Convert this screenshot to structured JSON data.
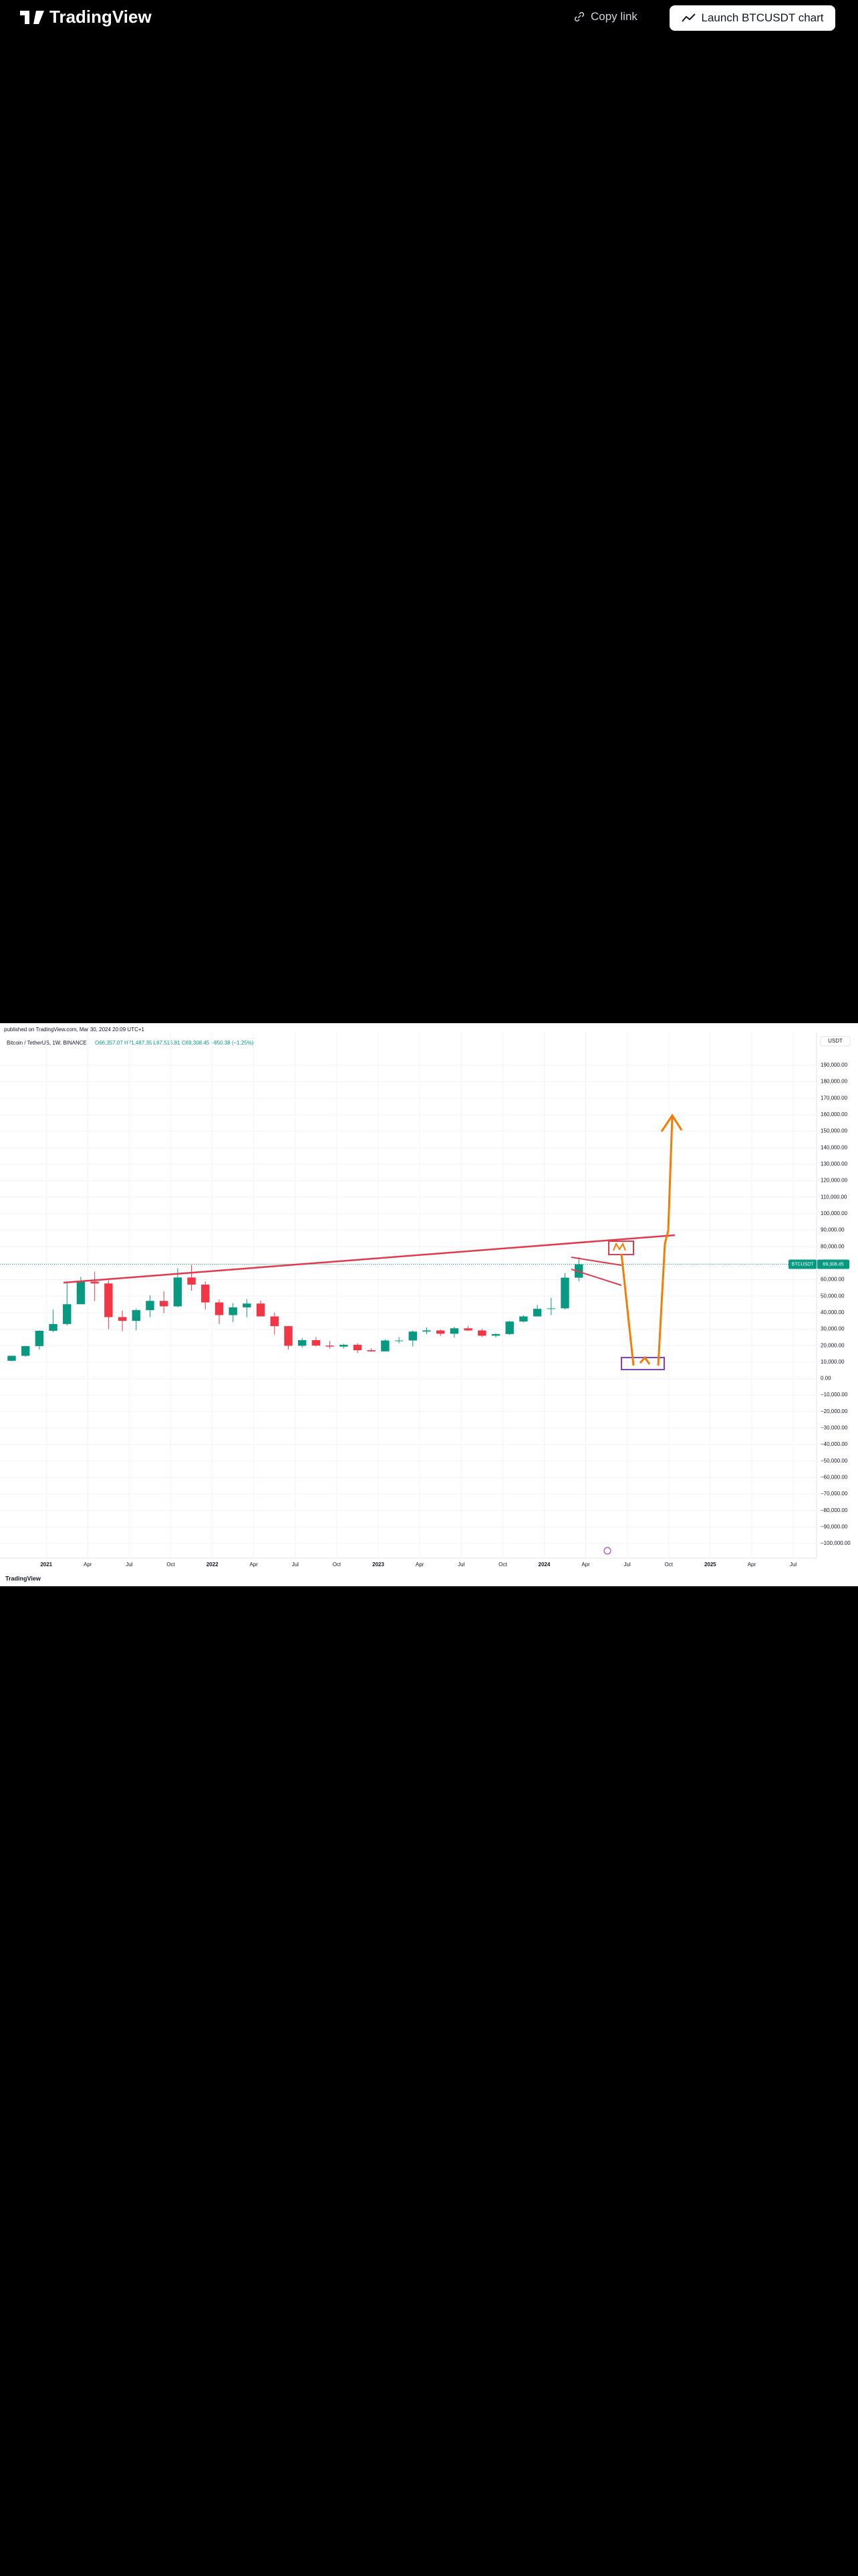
{
  "header": {
    "logo": "TradingView",
    "copy_link": "Copy link",
    "launch": "Launch BTCUSDT chart"
  },
  "snapshot": {
    "author_line": "published on TradingView.com, Mar 30, 2024 20:09 UTC+1",
    "footer_logo": "TradingView"
  },
  "chart_data": {
    "type": "candlestick",
    "title": "Bitcoin / TetherUS, 1W, BINANCE",
    "ohlc_readout": "O66,357.07 H71,487.35 L67,515.81 C69,308.45 −850.38 (−1.25%)",
    "currency": "USDT",
    "symbol_tag": "BTCUSDT",
    "last_price": {
      "value": 69308.45,
      "label": "69,308.45"
    },
    "up_color": "#089981",
    "down_color": "#f23645",
    "x": [
      "2020-10",
      "2020-11",
      "2020-12",
      "2021-01",
      "2021-02",
      "2021-03",
      "2021-04",
      "2021-05",
      "2021-06",
      "2021-07",
      "2021-08",
      "2021-09",
      "2021-10",
      "2021-11",
      "2021-12",
      "2022-01",
      "2022-02",
      "2022-03",
      "2022-04",
      "2022-05",
      "2022-06",
      "2022-07",
      "2022-08",
      "2022-09",
      "2022-10",
      "2022-11",
      "2022-12",
      "2023-01",
      "2023-02",
      "2023-03",
      "2023-04",
      "2023-05",
      "2023-06",
      "2023-07",
      "2023-08",
      "2023-09",
      "2023-10",
      "2023-11",
      "2023-12",
      "2024-01",
      "2024-02",
      "2024-03"
    ],
    "open": [
      10800,
      13800,
      19700,
      29000,
      33100,
      45100,
      58800,
      57700,
      37300,
      35000,
      41500,
      47100,
      43800,
      61300,
      57000,
      46200,
      38500,
      43200,
      45500,
      37700,
      31800,
      19900,
      23300,
      20000,
      19400,
      20500,
      17200,
      16500,
      23100,
      23100,
      28500,
      29200,
      27200,
      30500,
      29200,
      26000,
      27000,
      34600,
      37700,
      42300,
      42600,
      61200
    ],
    "high": [
      14000,
      19900,
      29300,
      41900,
      58300,
      61800,
      64900,
      59600,
      41300,
      42400,
      50500,
      52900,
      67000,
      69000,
      59000,
      48000,
      45800,
      48200,
      47400,
      40000,
      31900,
      24700,
      25200,
      22800,
      21100,
      21500,
      18400,
      23900,
      25200,
      29200,
      31000,
      29800,
      31400,
      31800,
      30200,
      27500,
      35000,
      38400,
      44700,
      48900,
      64000,
      73800
    ],
    "low": [
      10500,
      13200,
      17600,
      28100,
      32300,
      45000,
      47000,
      30000,
      28800,
      29300,
      37300,
      39600,
      43300,
      53300,
      42000,
      33000,
      34300,
      37200,
      37700,
      26700,
      17600,
      18800,
      19500,
      18100,
      18200,
      15500,
      16300,
      16500,
      21400,
      19500,
      26900,
      25800,
      24800,
      28900,
      25200,
      24900,
      26500,
      34100,
      37600,
      38500,
      41900,
      59000
    ],
    "close": [
      13800,
      19700,
      29000,
      33100,
      45100,
      58800,
      57700,
      37300,
      35000,
      41500,
      47100,
      43800,
      61300,
      57000,
      46200,
      38500,
      43200,
      45500,
      37700,
      31800,
      19900,
      23300,
      20000,
      19400,
      20500,
      17200,
      16500,
      23100,
      23100,
      28500,
      29200,
      27200,
      30500,
      29200,
      26000,
      27000,
      34600,
      37700,
      42300,
      42600,
      61200,
      69300
    ],
    "xlim": [
      "2020-09-21",
      "2025-08-22"
    ],
    "xticks": [
      {
        "value": "2021-01",
        "label": "2021"
      },
      {
        "value": "2021-04",
        "label": "Apr"
      },
      {
        "value": "2021-07",
        "label": "Jul"
      },
      {
        "value": "2021-10",
        "label": "Oct"
      },
      {
        "value": "2022-01",
        "label": "2022"
      },
      {
        "value": "2022-04",
        "label": "Apr"
      },
      {
        "value": "2022-07",
        "label": "Jul"
      },
      {
        "value": "2022-10",
        "label": "Oct"
      },
      {
        "value": "2023-01",
        "label": "2023"
      },
      {
        "value": "2023-04",
        "label": "Apr"
      },
      {
        "value": "2023-07",
        "label": "Jul"
      },
      {
        "value": "2023-10",
        "label": "Oct"
      },
      {
        "value": "2024-01",
        "label": "2024"
      },
      {
        "value": "2024-04",
        "label": "Apr"
      },
      {
        "value": "2024-07",
        "label": "Jul"
      },
      {
        "value": "2024-10",
        "label": "Oct"
      },
      {
        "value": "2025-01",
        "label": "2025"
      },
      {
        "value": "2025-04",
        "label": "Apr"
      },
      {
        "value": "2025-07",
        "label": "Jul"
      }
    ],
    "ylim": [
      -108900,
      206200
    ],
    "yticks": [
      {
        "value": 190000,
        "label": "190,000.00"
      },
      {
        "value": 180000,
        "label": "180,000.00"
      },
      {
        "value": 170000,
        "label": "170,000.00"
      },
      {
        "value": 160000,
        "label": "160,000.00"
      },
      {
        "value": 150000,
        "label": "150,000.00"
      },
      {
        "value": 140000,
        "label": "140,000.00"
      },
      {
        "value": 130000,
        "label": "130,000.00"
      },
      {
        "value": 120000,
        "label": "120,000.00"
      },
      {
        "value": 110000,
        "label": "110,000.00"
      },
      {
        "value": 100000,
        "label": "100,000.00"
      },
      {
        "value": 90000,
        "label": "90,000.00"
      },
      {
        "value": 80000,
        "label": "80,000.00"
      },
      {
        "value": 70000,
        "label": "70,000.00"
      },
      {
        "value": 60000,
        "label": "60,000.00"
      },
      {
        "value": 50000,
        "label": "50,000.00"
      },
      {
        "value": 40000,
        "label": "40,000.00"
      },
      {
        "value": 30000,
        "label": "30,000.00"
      },
      {
        "value": 20000,
        "label": "20,000.00"
      },
      {
        "value": 10000,
        "label": "10,000.00"
      },
      {
        "value": 0,
        "label": "0.00"
      },
      {
        "value": -10000,
        "label": "−10,000.00"
      },
      {
        "value": -20000,
        "label": "−20,000.00"
      },
      {
        "value": -30000,
        "label": "−30,000.00"
      },
      {
        "value": -40000,
        "label": "−40,000.00"
      },
      {
        "value": -50000,
        "label": "−50,000.00"
      },
      {
        "value": -60000,
        "label": "−60,000.00"
      },
      {
        "value": -70000,
        "label": "−70,000.00"
      },
      {
        "value": -80000,
        "label": "−80,000.00"
      },
      {
        "value": -90000,
        "label": "−90,000.00"
      },
      {
        "value": -100000,
        "label": "−100,000.00"
      }
    ],
    "grid": true
  }
}
